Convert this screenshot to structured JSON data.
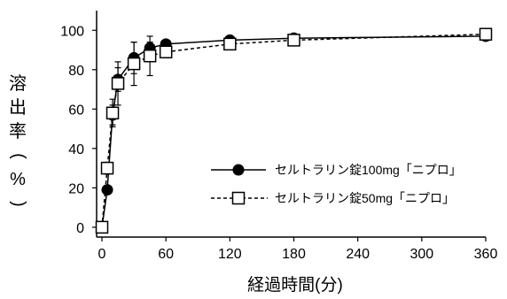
{
  "chart_data": {
    "type": "line",
    "title": "",
    "xlabel": "経過時間(分)",
    "ylabel": "溶出率(%)",
    "xlim": [
      -5,
      360
    ],
    "ylim": [
      -5,
      110
    ],
    "xticks": [
      0,
      60,
      120,
      180,
      240,
      300,
      360
    ],
    "yticks": [
      0,
      20,
      40,
      60,
      80,
      100
    ],
    "grid": false,
    "legend_position": "center-right",
    "x": [
      0,
      5,
      10,
      15,
      30,
      45,
      60,
      120,
      180,
      360
    ],
    "series": [
      {
        "name": "セルトラリン錠100mg「ニプロ」",
        "marker": "filled-circle",
        "line": "solid",
        "color": "#000000",
        "values": [
          0,
          19,
          57,
          75,
          86,
          91,
          93,
          95,
          96,
          97
        ],
        "error": [
          0,
          2,
          5,
          6,
          8,
          3,
          2,
          1,
          1,
          1
        ]
      },
      {
        "name": "セルトラリン錠50mg「ニプロ」",
        "marker": "open-square",
        "line": "dashed",
        "color": "#000000",
        "values": [
          0,
          30,
          58,
          73,
          83,
          87,
          89,
          93,
          95,
          98
        ],
        "error": [
          0,
          3,
          7,
          11,
          11,
          10,
          3,
          2,
          1,
          1
        ]
      }
    ]
  }
}
